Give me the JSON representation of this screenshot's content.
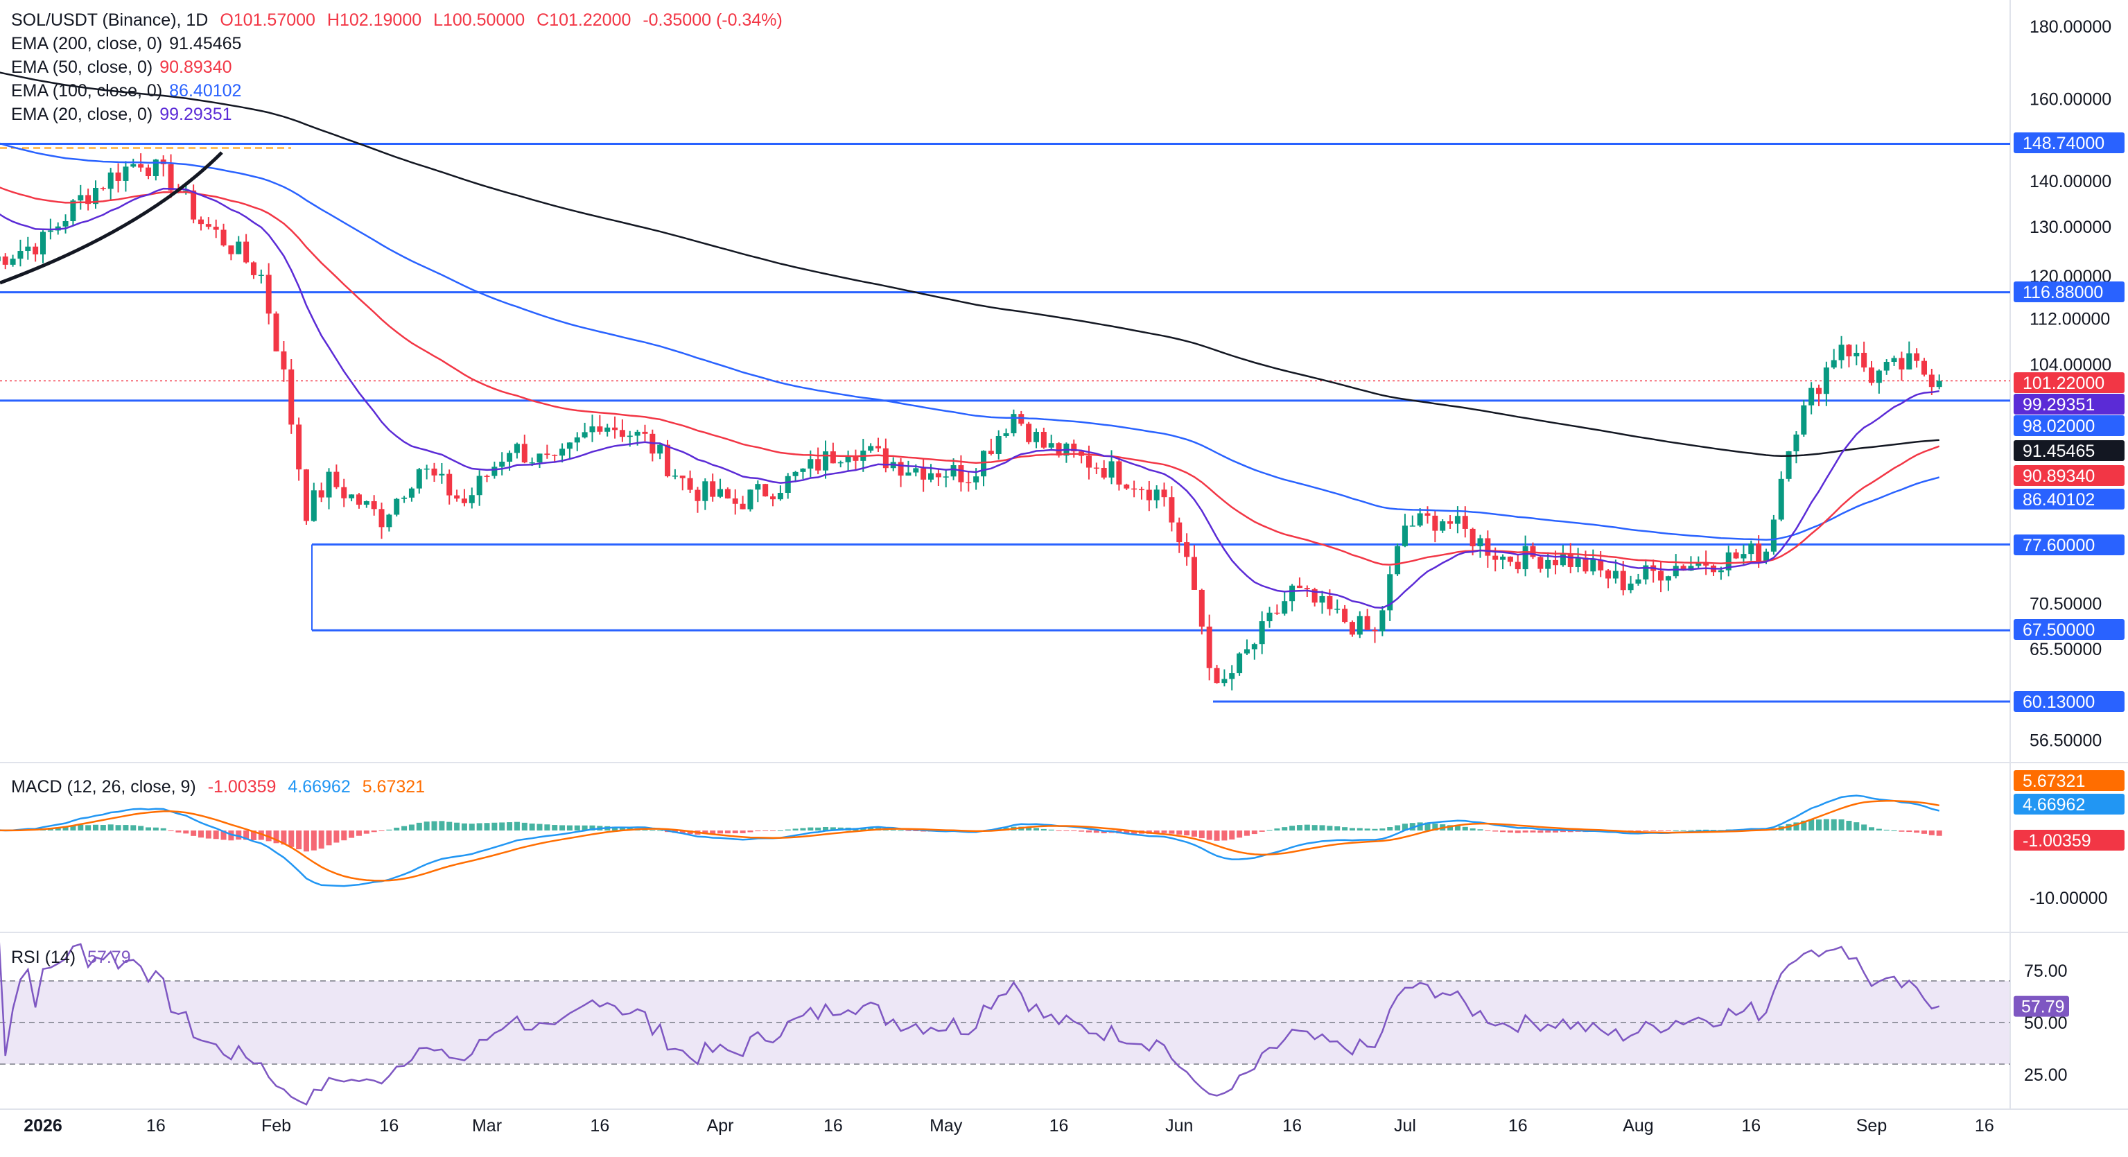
{
  "header": {
    "symbol": "SOL/USDT (Binance), 1D",
    "open": "O101.57000",
    "high": "H102.19000",
    "low": "L100.50000",
    "close": "C101.22000",
    "change": "-0.35000 (-0.34%)"
  },
  "indicators": {
    "ema200": {
      "label": "EMA (200, close, 0)",
      "value": "91.45465",
      "color": "#131722"
    },
    "ema50": {
      "label": "EMA (50, close, 0)",
      "value": "90.89340",
      "color": "#f23645"
    },
    "ema100": {
      "label": "EMA (100, close, 0)",
      "value": "86.40102",
      "color": "#2962ff"
    },
    "ema20": {
      "label": "EMA (20, close, 0)",
      "value": "99.29351",
      "color": "#5b2bd6"
    },
    "macd": {
      "label": "MACD (12, 26, close, 9)",
      "hist": "-1.00359",
      "macd": "4.66962",
      "signal": "5.67321"
    },
    "rsi": {
      "label": "RSI (14)",
      "value": "57.79"
    }
  },
  "colors": {
    "up": "#089981",
    "down": "#f23645",
    "level": "#2962ff",
    "macd_line": "#2196f3",
    "signal_line": "#ff6d00",
    "rsi_line": "#7e57c2",
    "rsi_band": "#ede7f6"
  },
  "price_axis": {
    "ticks": [
      "180.00000",
      "160.00000",
      "140.00000",
      "130.00000",
      "120.00000",
      "112.00000",
      "104.00000",
      "98.02000",
      "70.50000",
      "65.50000",
      "56.50000"
    ]
  },
  "badges": [
    {
      "text": "148.74000",
      "bg": "#2962ff"
    },
    {
      "text": "116.88000",
      "bg": "#2962ff"
    },
    {
      "text": "101.22000",
      "bg": "#f23645"
    },
    {
      "text": "99.29351",
      "bg": "#5b2bd6"
    },
    {
      "text": "98.02000",
      "bg": "#2962ff"
    },
    {
      "text": "91.45465",
      "bg": "#131722"
    },
    {
      "text": "90.89340",
      "bg": "#f23645"
    },
    {
      "text": "86.40102",
      "bg": "#2962ff"
    },
    {
      "text": "77.60000",
      "bg": "#2962ff"
    },
    {
      "text": "67.50000",
      "bg": "#2962ff"
    },
    {
      "text": "60.13000",
      "bg": "#2962ff"
    }
  ],
  "macd_axis": {
    "ticks": [
      "-10.00000"
    ],
    "badges": [
      {
        "text": "5.67321",
        "bg": "#ff6d00"
      },
      {
        "text": "4.66962",
        "bg": "#2196f3"
      },
      {
        "text": "-1.00359",
        "bg": "#f23645"
      }
    ]
  },
  "rsi_axis": {
    "ticks": [
      "75.00",
      "50.00",
      "25.00"
    ],
    "badge": {
      "text": "57.79",
      "bg": "#7e57c2"
    }
  },
  "time_axis": [
    "2026",
    "16",
    "Feb",
    "16",
    "Mar",
    "16",
    "Apr",
    "16",
    "May",
    "16",
    "Jun",
    "16",
    "Jul",
    "16",
    "Aug",
    "16",
    "Sep",
    "16"
  ],
  "chart_data": {
    "type": "candlestick",
    "title": "SOL/USDT (Binance), 1D",
    "xrange": [
      "2025-12-25",
      "2026-09-21"
    ],
    "y_scale": "log",
    "ylim": [
      52,
      188
    ],
    "last_close": 101.22,
    "horizontal_levels": [
      148.74,
      116.88,
      98.02,
      77.6,
      67.5,
      60.13
    ],
    "close_series": [
      {
        "date": "2025-12-25",
        "close": 123
      },
      {
        "date": "2026-01-01",
        "close": 127
      },
      {
        "date": "2026-01-06",
        "close": 136
      },
      {
        "date": "2026-01-10",
        "close": 141
      },
      {
        "date": "2026-01-14",
        "close": 145
      },
      {
        "date": "2026-01-18",
        "close": 140
      },
      {
        "date": "2026-01-22",
        "close": 131
      },
      {
        "date": "2026-01-26",
        "close": 126
      },
      {
        "date": "2026-01-30",
        "close": 120
      },
      {
        "date": "2026-02-02",
        "close": 102
      },
      {
        "date": "2026-02-05",
        "close": 82
      },
      {
        "date": "2026-02-08",
        "close": 86
      },
      {
        "date": "2026-02-15",
        "close": 81
      },
      {
        "date": "2026-02-20",
        "close": 88
      },
      {
        "date": "2026-02-26",
        "close": 83
      },
      {
        "date": "2026-03-04",
        "close": 91
      },
      {
        "date": "2026-03-10",
        "close": 88
      },
      {
        "date": "2026-03-16",
        "close": 95
      },
      {
        "date": "2026-03-22",
        "close": 92
      },
      {
        "date": "2026-03-28",
        "close": 85
      },
      {
        "date": "2026-04-03",
        "close": 83
      },
      {
        "date": "2026-04-10",
        "close": 86
      },
      {
        "date": "2026-04-18",
        "close": 91
      },
      {
        "date": "2026-04-26",
        "close": 88
      },
      {
        "date": "2026-05-04",
        "close": 87
      },
      {
        "date": "2026-05-10",
        "close": 96
      },
      {
        "date": "2026-05-14",
        "close": 91
      },
      {
        "date": "2026-05-22",
        "close": 88
      },
      {
        "date": "2026-05-30",
        "close": 84
      },
      {
        "date": "2026-06-03",
        "close": 72
      },
      {
        "date": "2026-06-06",
        "close": 61
      },
      {
        "date": "2026-06-10",
        "close": 65
      },
      {
        "date": "2026-06-16",
        "close": 72
      },
      {
        "date": "2026-06-22",
        "close": 69
      },
      {
        "date": "2026-06-27",
        "close": 67
      },
      {
        "date": "2026-07-01",
        "close": 80
      },
      {
        "date": "2026-07-06",
        "close": 81
      },
      {
        "date": "2026-07-14",
        "close": 76
      },
      {
        "date": "2026-07-22",
        "close": 76
      },
      {
        "date": "2026-07-30",
        "close": 73
      },
      {
        "date": "2026-08-06",
        "close": 75
      },
      {
        "date": "2026-08-14",
        "close": 76
      },
      {
        "date": "2026-08-18",
        "close": 77
      },
      {
        "date": "2026-08-21",
        "close": 92
      },
      {
        "date": "2026-08-25",
        "close": 101
      },
      {
        "date": "2026-08-28",
        "close": 108
      },
      {
        "date": "2026-09-01",
        "close": 102
      },
      {
        "date": "2026-09-06",
        "close": 104
      },
      {
        "date": "2026-09-10",
        "close": 101.22
      }
    ],
    "ema_last_values": {
      "EMA 20": 99.29351,
      "EMA 50": 90.8934,
      "EMA 100": 86.40102,
      "EMA 200": 91.45465
    },
    "macd_last": {
      "macd": 4.66962,
      "signal": 5.67321,
      "histogram": -1.00359
    },
    "rsi_last": 57.79,
    "rsi_levels": [
      70,
      50,
      30
    ]
  }
}
